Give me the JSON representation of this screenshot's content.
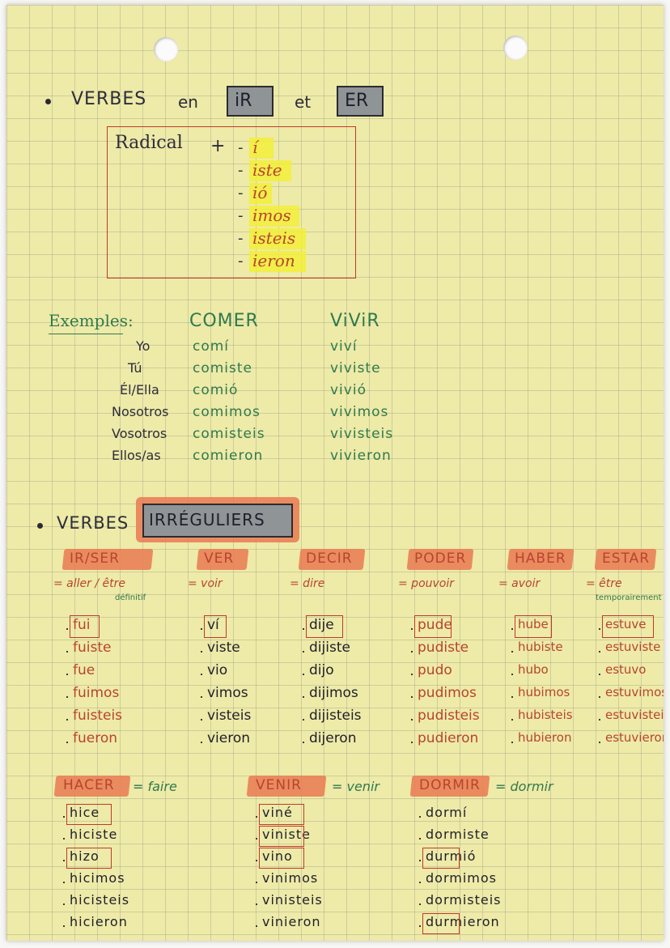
{
  "section1": {
    "title_word1": "VERBES",
    "title_word2": "en",
    "box1": "iR",
    "title_word3": "et",
    "box2": "ER",
    "radical": "Radical",
    "plus": "+",
    "endings": [
      "í",
      "iste",
      "ió",
      "imos",
      "isteis",
      "ieron"
    ]
  },
  "examples": {
    "label": "Exemples:",
    "col1_header": "COMER",
    "col2_header": "ViViR",
    "pronouns": [
      "Yo",
      "Tú",
      "Él/Ella",
      "Nosotros",
      "Vosotros",
      "Ellos/as"
    ],
    "comer": [
      "comí",
      "comiste",
      "comió",
      "comimos",
      "comisteis",
      "comieron"
    ],
    "vivir": [
      "viví",
      "viviste",
      "vivió",
      "vivimos",
      "vivisteis",
      "vivieron"
    ]
  },
  "section2": {
    "title_word1": "VERBES",
    "box": "IRRÉGULIERS"
  },
  "irregular_row1": [
    {
      "verb": "IR/SER",
      "meaning": "= aller / être",
      "note": "définitif",
      "forms": [
        "fui",
        "fuiste",
        "fue",
        "fuimos",
        "fuisteis",
        "fueron"
      ]
    },
    {
      "verb": "VER",
      "meaning": "= voir",
      "note": "",
      "forms": [
        "ví",
        "viste",
        "vio",
        "vimos",
        "visteis",
        "vieron"
      ]
    },
    {
      "verb": "DECIR",
      "meaning": "= dire",
      "note": "",
      "forms": [
        "dije",
        "dijiste",
        "dijo",
        "dijimos",
        "dijisteis",
        "dijeron"
      ]
    },
    {
      "verb": "PODER",
      "meaning": "= pouvoir",
      "note": "",
      "forms": [
        "pude",
        "pudiste",
        "pudo",
        "pudimos",
        "pudisteis",
        "pudieron"
      ]
    },
    {
      "verb": "HABER",
      "meaning": "= avoir",
      "note": "",
      "forms": [
        "hube",
        "hubiste",
        "hubo",
        "hubimos",
        "hubisteis",
        "hubieron"
      ]
    },
    {
      "verb": "ESTAR",
      "meaning": "= être",
      "note": "temporairement",
      "forms": [
        "estuve",
        "estuviste",
        "estuvo",
        "estuvimos",
        "estuvisteis",
        "estuvieron"
      ]
    }
  ],
  "irregular_row2": [
    {
      "verb": "HACER",
      "meaning": "= faire",
      "forms": [
        "hice",
        "hiciste",
        "hizo",
        "hicimos",
        "hicisteis",
        "hicieron"
      ]
    },
    {
      "verb": "VENIR",
      "meaning": "= venir",
      "forms": [
        "viné",
        "viniste",
        "vino",
        "vinimos",
        "vinisteis",
        "vinieron"
      ]
    },
    {
      "verb": "DORMIR",
      "meaning": "= dormir",
      "forms": [
        "dormí",
        "dormiste",
        "durmió",
        "dormimos",
        "dormisteis",
        "durmieron"
      ]
    }
  ]
}
